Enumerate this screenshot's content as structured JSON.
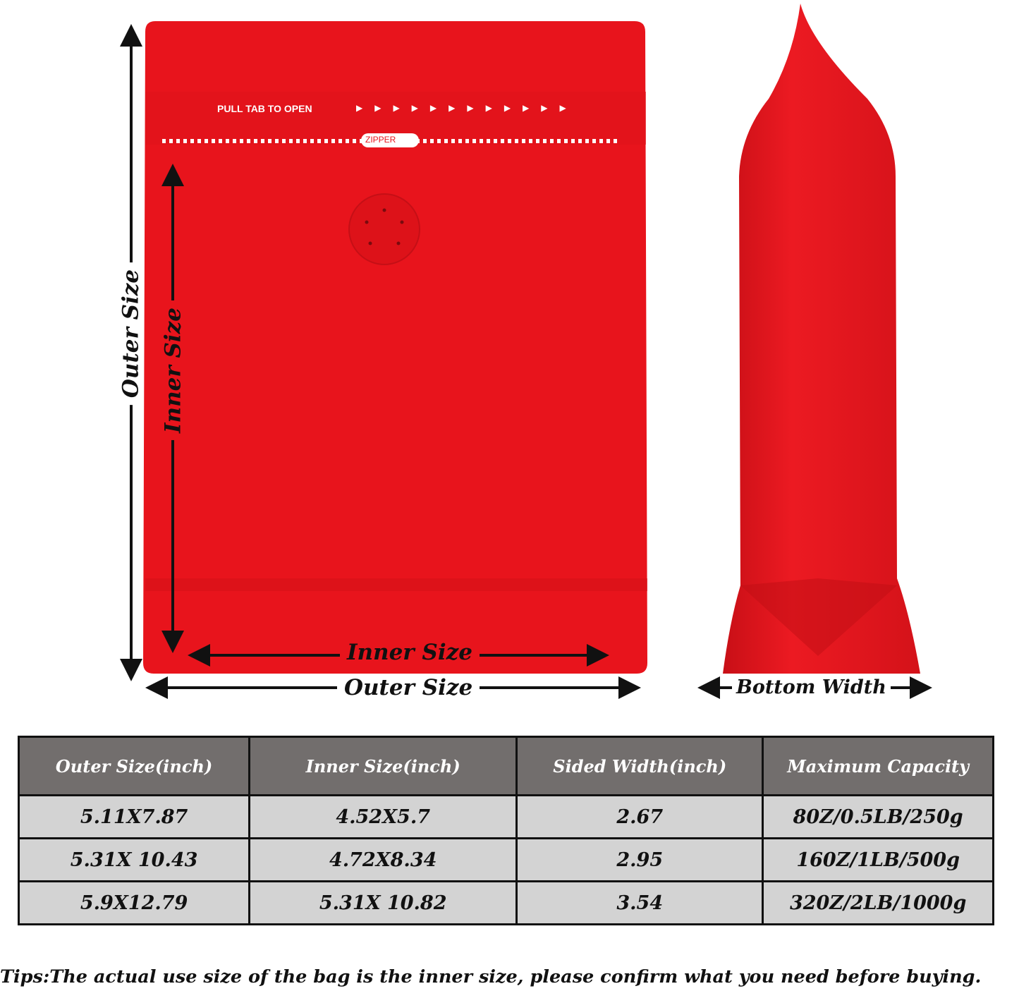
{
  "bag": {
    "color": "#e8141c",
    "pull_tab_text": "PULL TAB TO OPEN",
    "zipper_text": "ZIPPER"
  },
  "dimension_labels": {
    "outer_size_vertical": "Outer Size",
    "inner_size_vertical": "Inner Size",
    "inner_size_horizontal": "Inner Size",
    "outer_size_horizontal": "Outer Size",
    "bottom_width": "Bottom Width"
  },
  "table": {
    "headers": [
      "Outer Size(inch)",
      "Inner Size(inch)",
      "Sided Width(inch)",
      "Maximum Capacity"
    ],
    "rows": [
      [
        "5.11X7.87",
        "4.52X5.7",
        "2.67",
        "80Z/0.5LB/250g"
      ],
      [
        "5.31X 10.43",
        "4.72X8.34",
        "2.95",
        "160Z/1LB/500g"
      ],
      [
        "5.9X12.79",
        "5.31X 10.82",
        "3.54",
        "320Z/2LB/1000g"
      ]
    ],
    "header_color": "#726e6d",
    "cell_color": "#d3d3d3"
  },
  "tips": "Tips:The actual use size of the bag is the inner size, please confirm what you need before buying."
}
